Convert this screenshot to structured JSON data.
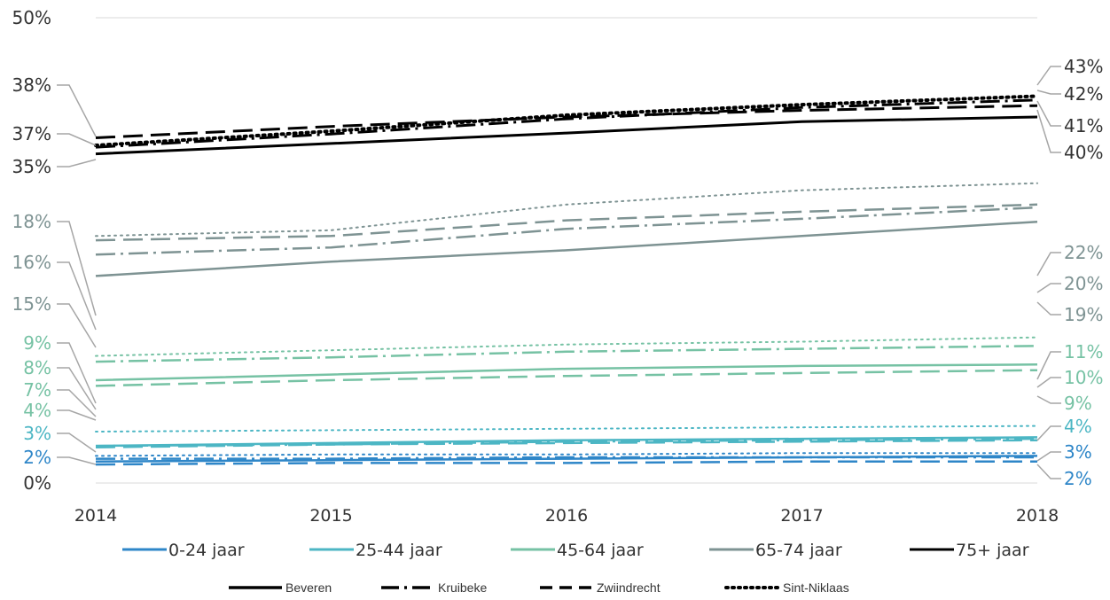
{
  "chart_data": {
    "type": "line",
    "x": [
      "2014",
      "2015",
      "2016",
      "2017",
      "2018"
    ],
    "y_ticks": [
      "50%",
      "38%",
      "37%",
      "35%",
      "18%",
      "16%",
      "15%",
      "9%",
      "8%",
      "7%",
      "4%",
      "3%",
      "2%",
      "0%"
    ],
    "right_labels": [
      "43%",
      "42%",
      "41%",
      "40%",
      "22%",
      "20%",
      "19%",
      "11%",
      "10%",
      "9%",
      "4%",
      "3%",
      "2%"
    ],
    "groups": [
      {
        "name": "0-24 jaar",
        "color": "#2e86c8",
        "series": [
          {
            "name": "Beveren",
            "values": [
              1.5,
              1.6,
              1.7,
              1.8,
              1.9
            ]
          },
          {
            "name": "Kruibeke",
            "values": [
              1.7,
              1.7,
              1.8,
              1.8,
              1.8
            ]
          },
          {
            "name": "Zwiindrecht",
            "values": [
              1.3,
              1.4,
              1.4,
              1.5,
              1.5
            ]
          },
          {
            "name": "Sint-Niklaas",
            "values": [
              1.9,
              2.0,
              2.0,
              2.1,
              2.1
            ]
          }
        ]
      },
      {
        "name": "25-44 jaar",
        "color": "#4cb6c4",
        "series": [
          {
            "name": "Beveren",
            "values": [
              2.6,
              2.8,
              3.0,
              3.1,
              3.2
            ]
          },
          {
            "name": "Kruibeke",
            "values": [
              2.6,
              2.7,
              2.9,
              3.0,
              3.1
            ]
          },
          {
            "name": "Zwiindrecht",
            "values": [
              2.5,
              2.7,
              2.8,
              2.9,
              3.0
            ]
          },
          {
            "name": "Sint-Niklaas",
            "values": [
              3.6,
              3.7,
              3.8,
              3.9,
              4.0
            ]
          }
        ]
      },
      {
        "name": "45-64 jaar",
        "color": "#76c2a4",
        "series": [
          {
            "name": "Beveren",
            "values": [
              7.2,
              7.6,
              8.0,
              8.2,
              8.3
            ]
          },
          {
            "name": "Kruibeke",
            "values": [
              8.5,
              8.8,
              9.2,
              9.4,
              9.6
            ]
          },
          {
            "name": "Zwiindrecht",
            "values": [
              6.8,
              7.2,
              7.5,
              7.7,
              7.9
            ]
          },
          {
            "name": "Sint-Niklaas",
            "values": [
              8.9,
              9.3,
              9.7,
              9.9,
              10.2
            ]
          }
        ]
      },
      {
        "name": "65-74 jaar",
        "color": "#7e9393",
        "series": [
          {
            "name": "Beveren",
            "values": [
              14.5,
              15.5,
              16.3,
              17.3,
              18.3
            ]
          },
          {
            "name": "Kruibeke",
            "values": [
              16.0,
              16.5,
              17.8,
              18.5,
              19.3
            ]
          },
          {
            "name": "Zwiindrecht",
            "values": [
              17.0,
              17.3,
              18.4,
              19.0,
              19.5
            ]
          },
          {
            "name": "Sint-Niklaas",
            "values": [
              17.3,
              17.7,
              19.5,
              20.5,
              21.0
            ]
          }
        ]
      },
      {
        "name": "75+ jaar",
        "color": "#000000",
        "series": [
          {
            "name": "Beveren",
            "values": [
              35.6,
              36.7,
              37.8,
              39.0,
              39.5
            ]
          },
          {
            "name": "Kruibeke",
            "values": [
              36.3,
              37.7,
              39.3,
              40.5,
              41.3
            ]
          },
          {
            "name": "Zwiindrecht",
            "values": [
              37.3,
              38.5,
              39.5,
              40.2,
              40.7
            ]
          },
          {
            "name": "Sint-Niklaas",
            "values": [
              36.5,
              38.0,
              39.7,
              40.8,
              41.7
            ]
          }
        ]
      }
    ],
    "dash_styles": [
      "solid",
      "dash-dot",
      "long-dash",
      "dot"
    ],
    "legend_age": [
      "0-24 jaar",
      "25-44 jaar",
      "45-64 jaar",
      "65-74 jaar",
      "75+ jaar"
    ],
    "legend_municipality": [
      "Beveren",
      "Kruibeke",
      "Zwiindrecht",
      "Sint-Niklaas"
    ],
    "colors": {
      "grid": "#d9d9d9",
      "leader": "#a6a6a6"
    }
  }
}
